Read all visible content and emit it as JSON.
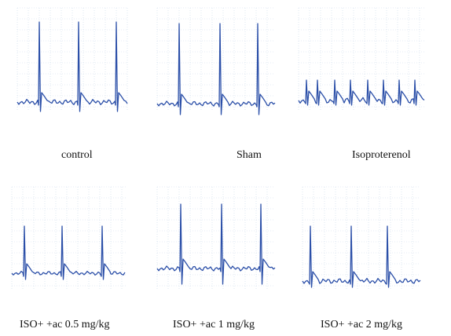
{
  "colors": {
    "trace": "#2b4fa8",
    "grid": "#c9d7ea",
    "background": "#ffffff",
    "text": "#111111"
  },
  "panels": [
    {
      "id": "control",
      "label": "control"
    },
    {
      "id": "sham",
      "label": "Sham"
    },
    {
      "id": "isoproterenol",
      "label": "Isoproterenol"
    },
    {
      "id": "iso-tac-0-5",
      "label": "ISO+ +ac 0.5 mg/kg"
    },
    {
      "id": "iso-tac-1",
      "label": "ISO+ +ac 1 mg/kg"
    },
    {
      "id": "iso-tac-2",
      "label": "ISO+ +ac 2 mg/kg"
    }
  ]
}
